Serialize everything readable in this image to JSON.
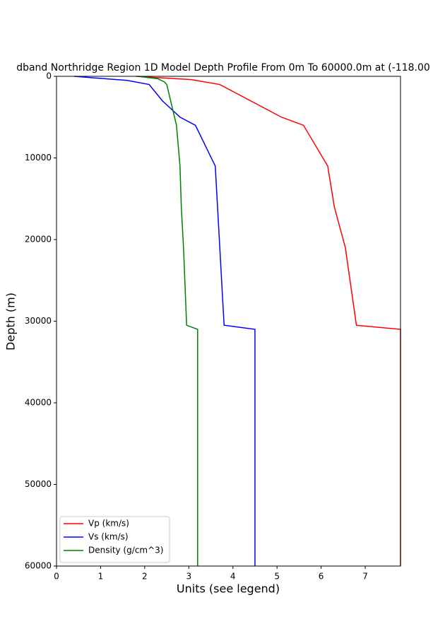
{
  "chart_data": {
    "type": "line",
    "title": "dband Northridge Region 1D Model Depth Profile From 0m To 60000.0m at (-118.00",
    "x_label": "Units (see legend)",
    "y_label": "Depth (m)",
    "xlim": [
      0,
      7.8
    ],
    "xticks": [
      0,
      1,
      2,
      3,
      4,
      5,
      6,
      7
    ],
    "ylim": [
      60000,
      0
    ],
    "yticks": [
      0,
      10000,
      20000,
      30000,
      40000,
      50000,
      60000
    ],
    "legend": "lower left",
    "series": [
      {
        "name": "Vp (km/s)",
        "color": "#ff0000",
        "x": [
          1.8,
          3.05,
          3.7,
          5.1,
          5.6,
          6.15,
          6.3,
          6.55,
          6.8,
          7.8,
          7.8
        ],
        "y": [
          0,
          400,
          1000,
          5000,
          6000,
          11000,
          16000,
          21000,
          30500,
          31000,
          60000
        ]
      },
      {
        "name": "Vs (km/s)",
        "color": "#0000ff",
        "x": [
          0.4,
          1.6,
          2.1,
          2.4,
          2.8,
          3.15,
          3.6,
          3.8,
          4.5,
          4.5
        ],
        "y": [
          0,
          500,
          1000,
          3000,
          5000,
          6000,
          11000,
          30500,
          31000,
          60000
        ]
      },
      {
        "name": "Density (g/cm^3)",
        "color": "#008000",
        "x": [
          1.85,
          2.3,
          2.45,
          2.5,
          2.72,
          2.8,
          2.83,
          2.88,
          2.95,
          3.2,
          3.2
        ],
        "y": [
          0,
          300,
          700,
          1000,
          6000,
          11000,
          16000,
          21000,
          30500,
          31000,
          60000
        ]
      }
    ]
  }
}
